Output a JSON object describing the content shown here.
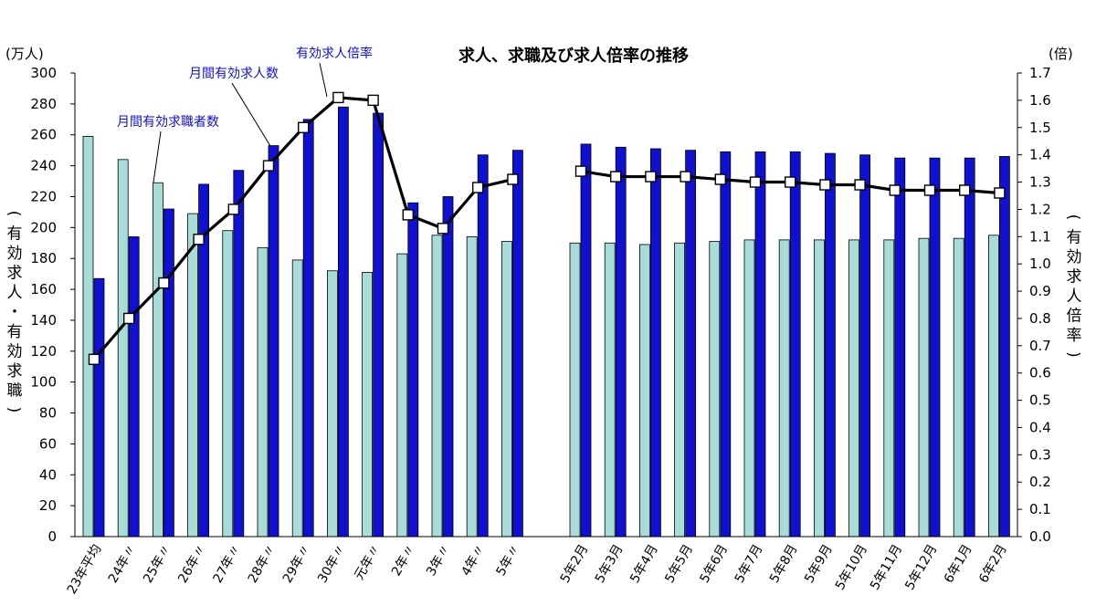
{
  "chart_data": {
    "type": "bar",
    "title": "求人、求職及び求人倍率の推移",
    "y_left": {
      "unit": "(万人)",
      "label": "(有効求人・有効求職)",
      "min": 0,
      "max": 300,
      "step": 20,
      "ticks": [
        "0",
        "20",
        "40",
        "60",
        "80",
        "100",
        "120",
        "140",
        "160",
        "180",
        "200",
        "220",
        "240",
        "260",
        "280",
        "300"
      ]
    },
    "y_right": {
      "unit": "(倍)",
      "label": "(有効求人倍率)",
      "min": 0,
      "max": 1.7,
      "step": 0.1,
      "ticks": [
        "0.0",
        "0.1",
        "0.2",
        "0.3",
        "0.4",
        "0.5",
        "0.6",
        "0.7",
        "0.8",
        "0.9",
        "1.0",
        "1.1",
        "1.2",
        "1.3",
        "1.4",
        "1.5",
        "1.6",
        "1.7"
      ]
    },
    "categories": [
      "23年平均",
      "24年〃",
      "25年〃",
      "26年〃",
      "27年〃",
      "28年〃",
      "29年〃",
      "30年〃",
      "元年〃",
      "2年〃",
      "3年〃",
      "4年〃",
      "5年〃",
      "5年2月",
      "5年3月",
      "5年4月",
      "5年5月",
      "5年6月",
      "5年7月",
      "5年8月",
      "5年9月",
      "5年10月",
      "5年11月",
      "5年12月",
      "6年1月",
      "6年2月"
    ],
    "series": [
      {
        "name": "月間有効求職者数",
        "axis": "left",
        "color": "#a8dcd8",
        "values": [
          259,
          244,
          229,
          209,
          198,
          187,
          179,
          172,
          171,
          183,
          195,
          194,
          191,
          190,
          190,
          189,
          190,
          191,
          192,
          192,
          192,
          192,
          192,
          193,
          193,
          195
        ]
      },
      {
        "name": "月間有効求人数",
        "axis": "left",
        "color": "#1010d0",
        "values": [
          167,
          194,
          212,
          228,
          237,
          253,
          270,
          278,
          274,
          216,
          220,
          247,
          250,
          254,
          252,
          251,
          250,
          249,
          249,
          249,
          248,
          247,
          245,
          245,
          245,
          246
        ]
      },
      {
        "name": "有効求人倍率",
        "axis": "right",
        "type": "line",
        "color": "#000000",
        "values": [
          0.65,
          0.8,
          0.93,
          1.09,
          1.2,
          1.36,
          1.5,
          1.61,
          1.6,
          1.18,
          1.13,
          1.28,
          1.31,
          1.34,
          1.32,
          1.32,
          1.32,
          1.31,
          1.3,
          1.3,
          1.29,
          1.29,
          1.27,
          1.27,
          1.27,
          1.26
        ]
      }
    ],
    "grid": false,
    "legend": "callout labels"
  }
}
